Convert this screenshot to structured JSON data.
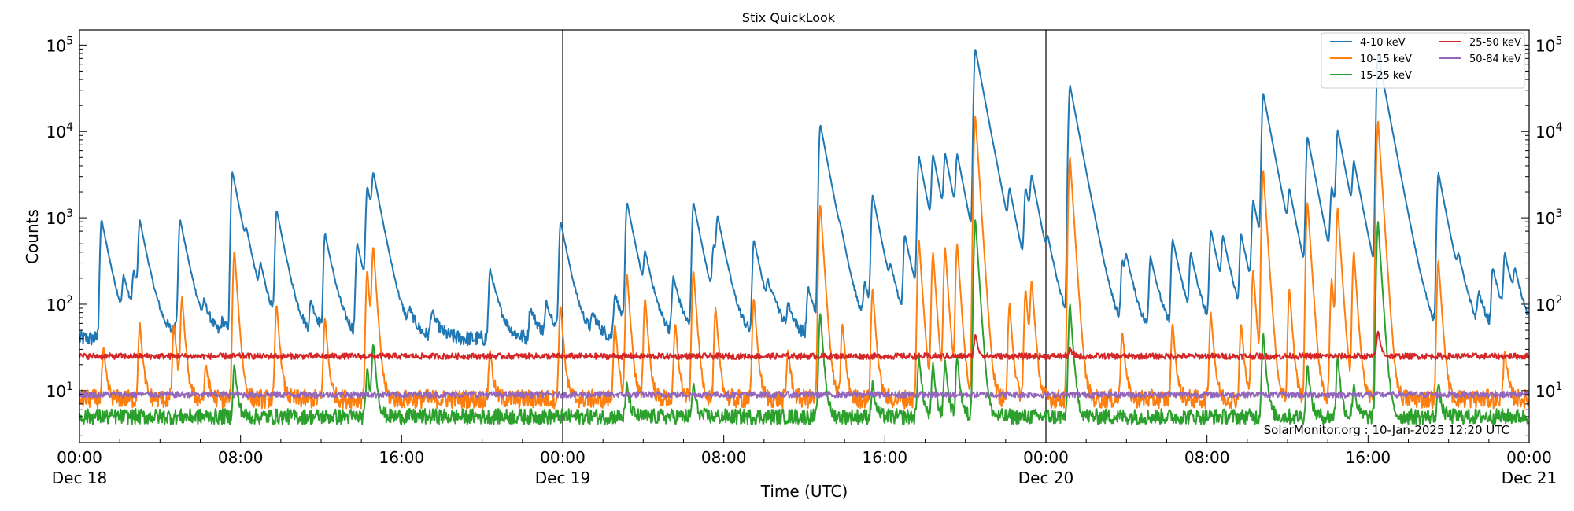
{
  "chart_data": {
    "type": "line",
    "title": "Stix QuickLook",
    "xlabel": "Time (UTC)",
    "ylabel": "Counts",
    "yscale": "log",
    "ylim": [
      2.5,
      150000
    ],
    "xlim_hours": [
      0,
      72
    ],
    "x_tick_labels": [
      {
        "hour": 0,
        "time": "00:00",
        "date": "Dec 18"
      },
      {
        "hour": 8,
        "time": "08:00",
        "date": ""
      },
      {
        "hour": 16,
        "time": "16:00",
        "date": ""
      },
      {
        "hour": 24,
        "time": "00:00",
        "date": "Dec 19"
      },
      {
        "hour": 32,
        "time": "08:00",
        "date": ""
      },
      {
        "hour": 40,
        "time": "16:00",
        "date": ""
      },
      {
        "hour": 48,
        "time": "00:00",
        "date": "Dec 20"
      },
      {
        "hour": 56,
        "time": "08:00",
        "date": ""
      },
      {
        "hour": 64,
        "time": "16:00",
        "date": ""
      },
      {
        "hour": 72,
        "time": "00:00",
        "date": "Dec 21"
      }
    ],
    "y_tick_labels": [
      {
        "value": 10,
        "base": "10",
        "exp": "1"
      },
      {
        "value": 100,
        "base": "10",
        "exp": "2"
      },
      {
        "value": 1000,
        "base": "10",
        "exp": "3"
      },
      {
        "value": 10000,
        "base": "10",
        "exp": "4"
      },
      {
        "value": 100000,
        "base": "10",
        "exp": "5"
      }
    ],
    "day_boundaries_hours": [
      24,
      48
    ],
    "legend_position": "top-right",
    "annotation": "SolarMonitor.org : 10-Jan-2025 12:20 UTC",
    "series": [
      {
        "name": "4-10 keV",
        "color": "#1f77b4",
        "background": 40,
        "peaks": [
          {
            "t": 1.1,
            "v": 950
          },
          {
            "t": 2.2,
            "v": 180
          },
          {
            "t": 2.7,
            "v": 200
          },
          {
            "t": 3.0,
            "v": 850
          },
          {
            "t": 4.8,
            "v": 60
          },
          {
            "t": 5.0,
            "v": 950
          },
          {
            "t": 6.2,
            "v": 80
          },
          {
            "t": 7.1,
            "v": 60
          },
          {
            "t": 7.6,
            "v": 3400
          },
          {
            "t": 8.3,
            "v": 300
          },
          {
            "t": 9.0,
            "v": 200
          },
          {
            "t": 9.8,
            "v": 1200
          },
          {
            "t": 11.5,
            "v": 100
          },
          {
            "t": 12.2,
            "v": 650
          },
          {
            "t": 13.8,
            "v": 500
          },
          {
            "t": 14.3,
            "v": 2200
          },
          {
            "t": 14.6,
            "v": 2400
          },
          {
            "t": 16.4,
            "v": 70
          },
          {
            "t": 17.5,
            "v": 80
          },
          {
            "t": 20.4,
            "v": 250
          },
          {
            "t": 22.4,
            "v": 90
          },
          {
            "t": 23.2,
            "v": 100
          },
          {
            "t": 23.9,
            "v": 900
          },
          {
            "t": 25.5,
            "v": 70
          },
          {
            "t": 26.6,
            "v": 130
          },
          {
            "t": 27.2,
            "v": 1500
          },
          {
            "t": 28.1,
            "v": 300
          },
          {
            "t": 29.5,
            "v": 200
          },
          {
            "t": 30.5,
            "v": 1500
          },
          {
            "t": 31.5,
            "v": 400
          },
          {
            "t": 31.7,
            "v": 800
          },
          {
            "t": 33.5,
            "v": 550
          },
          {
            "t": 34.2,
            "v": 120
          },
          {
            "t": 34.5,
            "v": 70
          },
          {
            "t": 35.2,
            "v": 90
          },
          {
            "t": 36.2,
            "v": 150
          },
          {
            "t": 36.8,
            "v": 12000
          },
          {
            "t": 37.8,
            "v": 150
          },
          {
            "t": 39.0,
            "v": 150
          },
          {
            "t": 39.4,
            "v": 1800
          },
          {
            "t": 40.3,
            "v": 150
          },
          {
            "t": 41.0,
            "v": 600
          },
          {
            "t": 41.7,
            "v": 5000
          },
          {
            "t": 42.4,
            "v": 4700
          },
          {
            "t": 43.0,
            "v": 4600
          },
          {
            "t": 43.6,
            "v": 4500
          },
          {
            "t": 44.5,
            "v": 89000
          },
          {
            "t": 45.5,
            "v": 150
          },
          {
            "t": 46.2,
            "v": 1500
          },
          {
            "t": 47.0,
            "v": 2000
          },
          {
            "t": 47.3,
            "v": 2200
          },
          {
            "t": 48.1,
            "v": 300
          },
          {
            "t": 49.2,
            "v": 34000
          },
          {
            "t": 51.8,
            "v": 300
          },
          {
            "t": 52.0,
            "v": 220
          },
          {
            "t": 53.2,
            "v": 350
          },
          {
            "t": 54.3,
            "v": 550
          },
          {
            "t": 55.2,
            "v": 350
          },
          {
            "t": 56.2,
            "v": 700
          },
          {
            "t": 56.8,
            "v": 500
          },
          {
            "t": 57.7,
            "v": 600
          },
          {
            "t": 58.3,
            "v": 1500
          },
          {
            "t": 58.8,
            "v": 27000
          },
          {
            "t": 60.1,
            "v": 1500
          },
          {
            "t": 61.0,
            "v": 8500
          },
          {
            "t": 62.2,
            "v": 2000
          },
          {
            "t": 62.5,
            "v": 9500
          },
          {
            "t": 63.3,
            "v": 3500
          },
          {
            "t": 64.5,
            "v": 78000
          },
          {
            "t": 67.5,
            "v": 3300
          },
          {
            "t": 68.5,
            "v": 200
          },
          {
            "t": 69.5,
            "v": 120
          },
          {
            "t": 70.2,
            "v": 250
          },
          {
            "t": 70.8,
            "v": 350
          },
          {
            "t": 71.3,
            "v": 180
          }
        ]
      },
      {
        "name": "10-15 keV",
        "color": "#ff7f0e",
        "background": 8,
        "peaks": [
          {
            "t": 1.2,
            "v": 30
          },
          {
            "t": 3.0,
            "v": 60
          },
          {
            "t": 4.7,
            "v": 60
          },
          {
            "t": 5.1,
            "v": 120
          },
          {
            "t": 6.3,
            "v": 20
          },
          {
            "t": 7.7,
            "v": 420
          },
          {
            "t": 9.8,
            "v": 100
          },
          {
            "t": 12.2,
            "v": 70
          },
          {
            "t": 14.3,
            "v": 250
          },
          {
            "t": 14.6,
            "v": 450
          },
          {
            "t": 20.4,
            "v": 30
          },
          {
            "t": 23.9,
            "v": 100
          },
          {
            "t": 26.6,
            "v": 60
          },
          {
            "t": 27.2,
            "v": 230
          },
          {
            "t": 28.1,
            "v": 120
          },
          {
            "t": 29.6,
            "v": 60
          },
          {
            "t": 30.5,
            "v": 250
          },
          {
            "t": 31.6,
            "v": 90
          },
          {
            "t": 33.5,
            "v": 120
          },
          {
            "t": 35.2,
            "v": 30
          },
          {
            "t": 36.8,
            "v": 1450
          },
          {
            "t": 37.9,
            "v": 60
          },
          {
            "t": 39.4,
            "v": 150
          },
          {
            "t": 41.7,
            "v": 550
          },
          {
            "t": 42.4,
            "v": 400
          },
          {
            "t": 43.0,
            "v": 450
          },
          {
            "t": 43.6,
            "v": 500
          },
          {
            "t": 44.5,
            "v": 15000
          },
          {
            "t": 46.2,
            "v": 100
          },
          {
            "t": 47.0,
            "v": 150
          },
          {
            "t": 47.3,
            "v": 180
          },
          {
            "t": 49.2,
            "v": 5000
          },
          {
            "t": 51.8,
            "v": 50
          },
          {
            "t": 54.3,
            "v": 60
          },
          {
            "t": 56.2,
            "v": 80
          },
          {
            "t": 57.7,
            "v": 60
          },
          {
            "t": 58.3,
            "v": 250
          },
          {
            "t": 58.8,
            "v": 3500
          },
          {
            "t": 60.1,
            "v": 150
          },
          {
            "t": 61.0,
            "v": 1500
          },
          {
            "t": 62.2,
            "v": 200
          },
          {
            "t": 62.5,
            "v": 1300
          },
          {
            "t": 63.3,
            "v": 400
          },
          {
            "t": 64.5,
            "v": 13000
          },
          {
            "t": 67.5,
            "v": 320
          },
          {
            "t": 70.8,
            "v": 30
          }
        ]
      },
      {
        "name": "15-25 keV",
        "color": "#2ca02c",
        "background": 5,
        "peaks": [
          {
            "t": 7.7,
            "v": 20
          },
          {
            "t": 14.3,
            "v": 18
          },
          {
            "t": 14.6,
            "v": 35
          },
          {
            "t": 27.2,
            "v": 12
          },
          {
            "t": 30.5,
            "v": 12
          },
          {
            "t": 36.8,
            "v": 80
          },
          {
            "t": 39.4,
            "v": 12
          },
          {
            "t": 41.7,
            "v": 25
          },
          {
            "t": 42.4,
            "v": 20
          },
          {
            "t": 43.0,
            "v": 22
          },
          {
            "t": 43.6,
            "v": 25
          },
          {
            "t": 44.5,
            "v": 950
          },
          {
            "t": 49.2,
            "v": 100
          },
          {
            "t": 58.8,
            "v": 45
          },
          {
            "t": 61.0,
            "v": 20
          },
          {
            "t": 62.5,
            "v": 25
          },
          {
            "t": 63.3,
            "v": 12
          },
          {
            "t": 64.5,
            "v": 900
          },
          {
            "t": 67.5,
            "v": 12
          }
        ]
      },
      {
        "name": "25-50 keV",
        "color": "#d62728",
        "background": 25,
        "peaks": [
          {
            "t": 44.5,
            "v": 45
          },
          {
            "t": 49.2,
            "v": 30
          },
          {
            "t": 64.5,
            "v": 50
          }
        ]
      },
      {
        "name": "50-84 keV",
        "color": "#9467bd",
        "background": 9,
        "peaks": []
      }
    ]
  }
}
